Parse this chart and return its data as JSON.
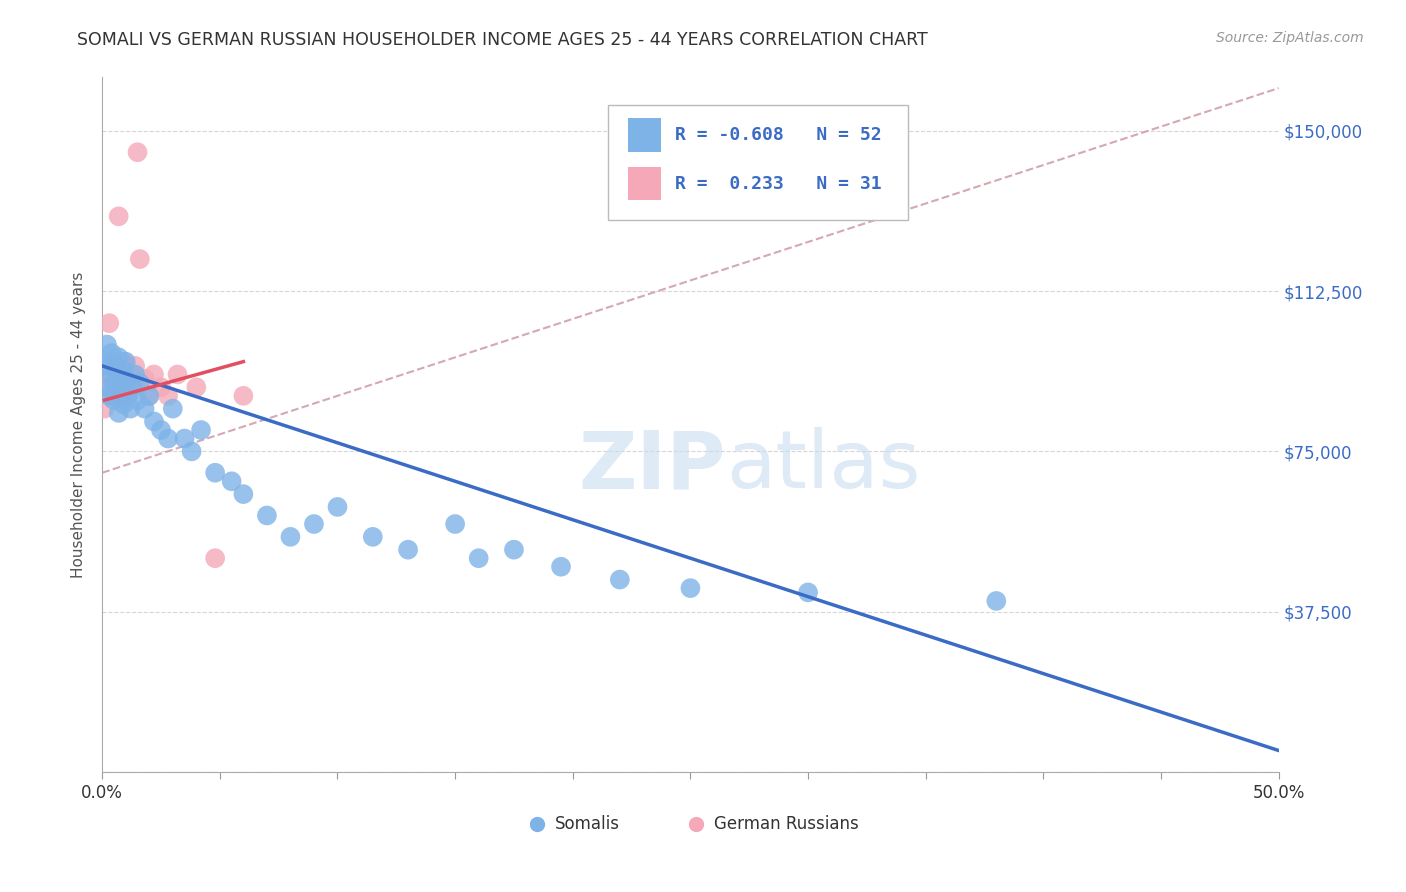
{
  "title": "SOMALI VS GERMAN RUSSIAN HOUSEHOLDER INCOME AGES 25 - 44 YEARS CORRELATION CHART",
  "source": "Source: ZipAtlas.com",
  "ylabel": "Householder Income Ages 25 - 44 years",
  "xlim": [
    0.0,
    0.5
  ],
  "ylim": [
    0,
    162500
  ],
  "yticks": [
    0,
    37500,
    75000,
    112500,
    150000
  ],
  "ytick_labels": [
    "",
    "$37,500",
    "$75,000",
    "$112,500",
    "$150,000"
  ],
  "xticks": [
    0.0,
    0.05,
    0.1,
    0.15,
    0.2,
    0.25,
    0.3,
    0.35,
    0.4,
    0.45,
    0.5
  ],
  "somalis_color": "#7EB3E8",
  "german_russians_color": "#F4A8B8",
  "somalis_label": "Somalis",
  "german_russians_label": "German Russians",
  "blue_line_color": "#3B6CC5",
  "red_line_color": "#E05060",
  "dashed_line_color": "#D0A0A8",
  "watermark_zip_color": "#C8DCF0",
  "watermark_atlas_color": "#C8DCF0",
  "somalis_x": [
    0.001,
    0.002,
    0.002,
    0.003,
    0.003,
    0.004,
    0.004,
    0.005,
    0.005,
    0.006,
    0.006,
    0.006,
    0.007,
    0.007,
    0.008,
    0.008,
    0.009,
    0.009,
    0.01,
    0.01,
    0.011,
    0.012,
    0.013,
    0.014,
    0.015,
    0.016,
    0.018,
    0.02,
    0.022,
    0.025,
    0.028,
    0.03,
    0.035,
    0.038,
    0.042,
    0.048,
    0.055,
    0.06,
    0.07,
    0.08,
    0.09,
    0.1,
    0.115,
    0.13,
    0.15,
    0.16,
    0.175,
    0.195,
    0.22,
    0.25,
    0.3,
    0.38
  ],
  "somalis_y": [
    95000,
    100000,
    90000,
    96000,
    88000,
    93000,
    98000,
    91000,
    87000,
    95000,
    89000,
    93000,
    97000,
    84000,
    91000,
    88000,
    94000,
    86000,
    92000,
    96000,
    88000,
    85000,
    90000,
    93000,
    87000,
    91000,
    85000,
    88000,
    82000,
    80000,
    78000,
    85000,
    78000,
    75000,
    80000,
    70000,
    68000,
    65000,
    60000,
    55000,
    58000,
    62000,
    55000,
    52000,
    58000,
    50000,
    52000,
    48000,
    45000,
    43000,
    42000,
    40000
  ],
  "german_russians_x": [
    0.001,
    0.002,
    0.003,
    0.003,
    0.004,
    0.005,
    0.005,
    0.006,
    0.006,
    0.007,
    0.007,
    0.008,
    0.009,
    0.009,
    0.01,
    0.01,
    0.011,
    0.012,
    0.013,
    0.014,
    0.015,
    0.016,
    0.018,
    0.02,
    0.022,
    0.025,
    0.028,
    0.032,
    0.04,
    0.048,
    0.06
  ],
  "german_russians_y": [
    85000,
    90000,
    105000,
    95000,
    92000,
    88000,
    96000,
    90000,
    94000,
    88000,
    130000,
    92000,
    96000,
    88000,
    91000,
    95000,
    88000,
    93000,
    90000,
    95000,
    145000,
    120000,
    92000,
    88000,
    93000,
    90000,
    88000,
    93000,
    90000,
    50000,
    88000
  ],
  "blue_line_x": [
    0.0,
    0.5
  ],
  "blue_line_y": [
    95000,
    5000
  ],
  "red_line_x": [
    0.001,
    0.06
  ],
  "red_line_y": [
    87000,
    96000
  ],
  "dashed_line_x": [
    0.0,
    0.5
  ],
  "dashed_line_y": [
    70000,
    160000
  ]
}
